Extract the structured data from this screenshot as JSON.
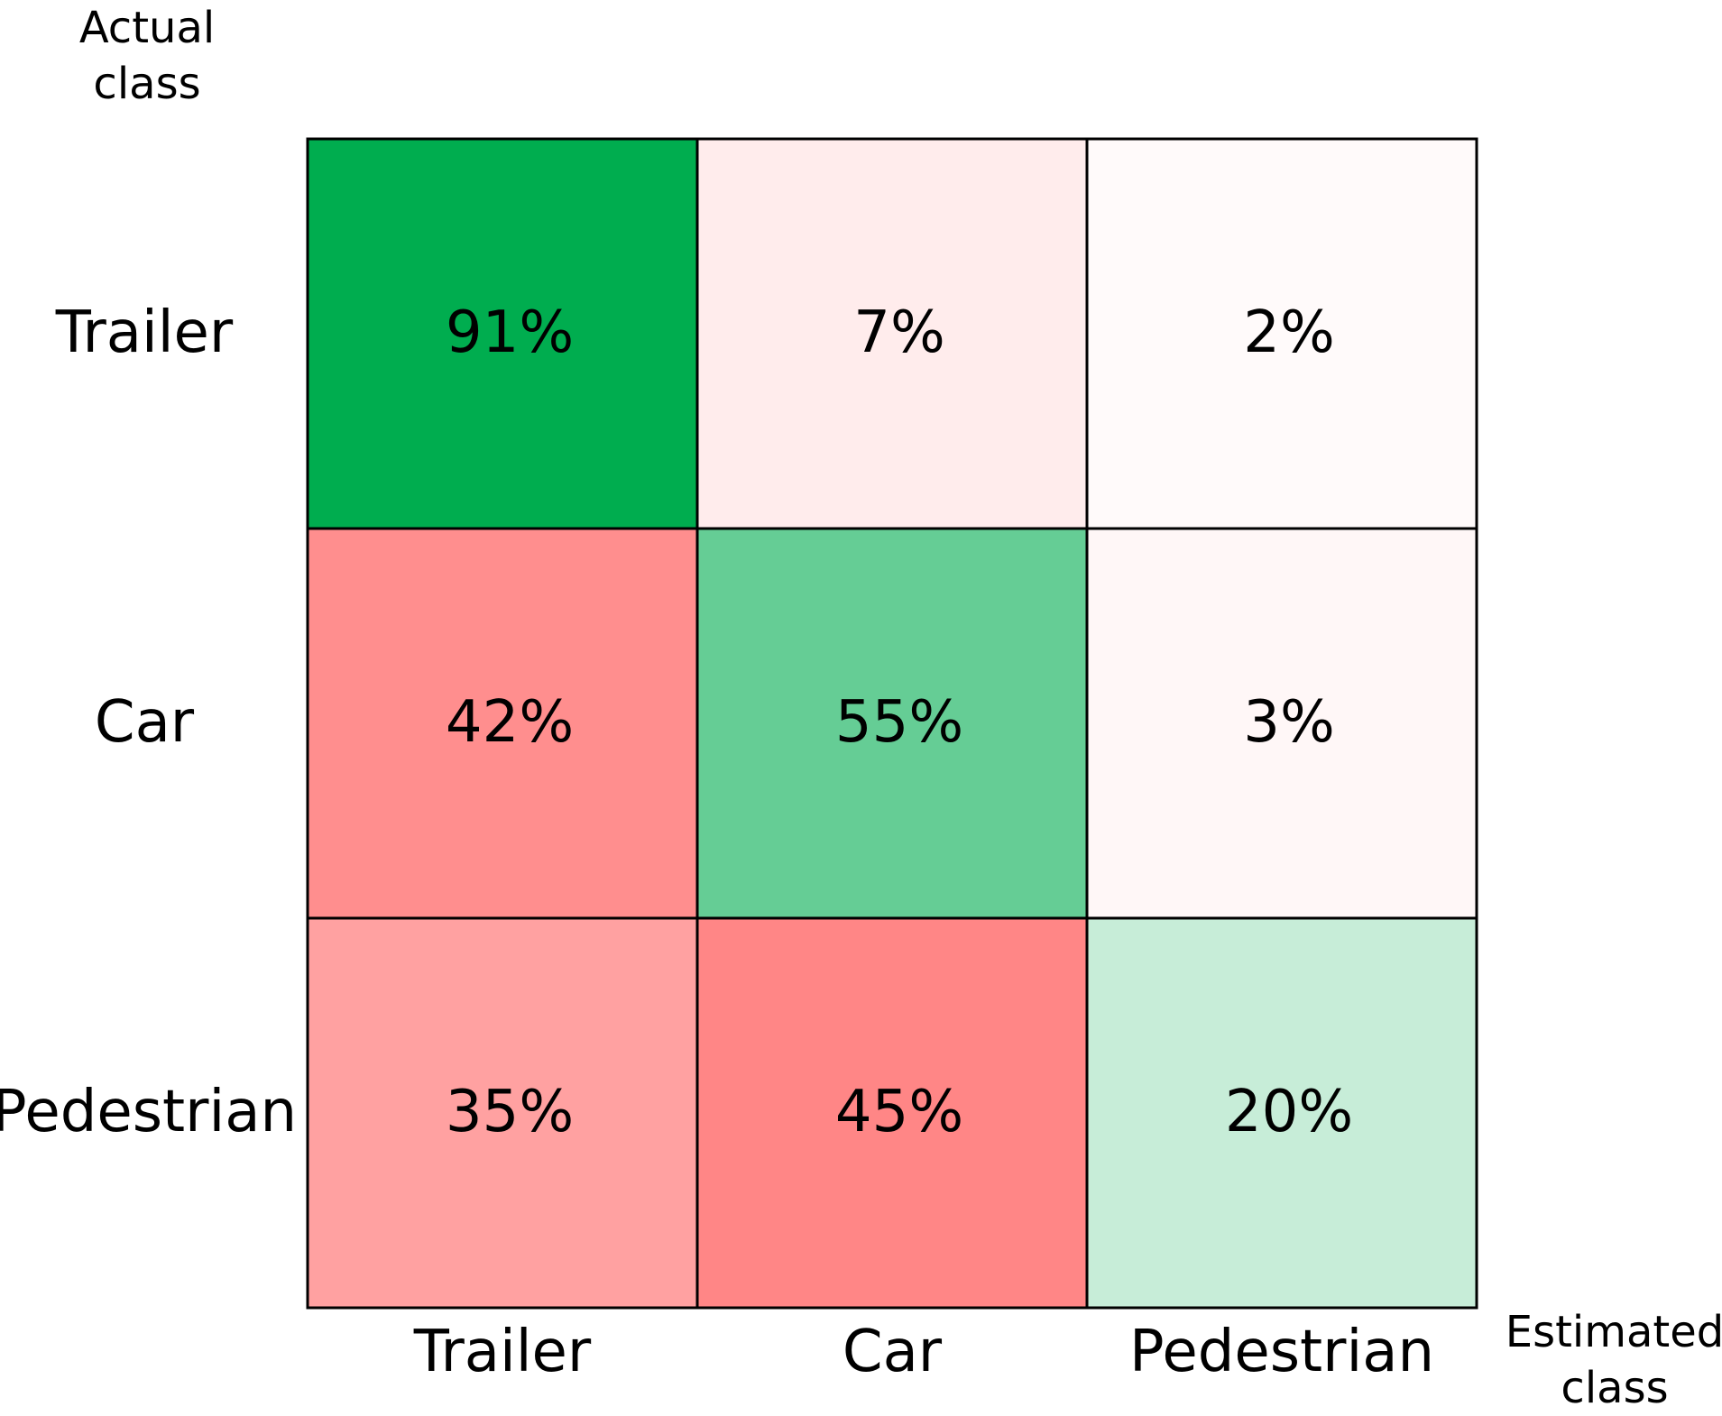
{
  "chart_data": {
    "type": "heatmap",
    "title": "",
    "ylabel": [
      "Actual",
      "class"
    ],
    "xlabel": [
      "Estimated",
      "class"
    ],
    "rows": [
      "Trailer",
      "Car",
      "Pedestrian"
    ],
    "columns": [
      "Trailer",
      "Car",
      "Pedestrian"
    ],
    "values": [
      [
        91,
        7,
        2
      ],
      [
        42,
        55,
        3
      ],
      [
        35,
        45,
        20
      ]
    ],
    "labels": [
      [
        "91%",
        "7%",
        "2%"
      ],
      [
        "42%",
        "55%",
        "3%"
      ],
      [
        "35%",
        "45%",
        "20%"
      ]
    ],
    "colors": {
      "correct": "#00ad4f",
      "incorrect": "#ff8686",
      "background": "#ffffff",
      "border": "#000000"
    }
  }
}
